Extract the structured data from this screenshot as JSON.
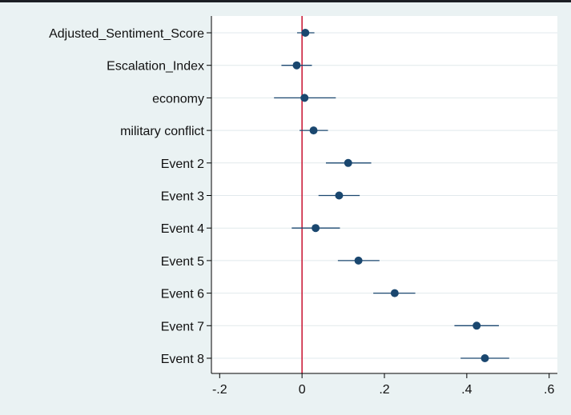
{
  "chart_data": {
    "type": "scatter",
    "subtype": "coefficient-plot",
    "title": "",
    "xlabel": "",
    "ylabel": "",
    "xlim": [
      -0.22,
      0.62
    ],
    "xticks": [
      {
        "value": -0.2,
        "label": "-.2"
      },
      {
        "value": 0,
        "label": "0"
      },
      {
        "value": 0.2,
        "label": ".2"
      },
      {
        "value": 0.4,
        "label": ".4"
      },
      {
        "value": 0.6,
        "label": ".6"
      }
    ],
    "reference_line": {
      "x": 0,
      "color": "#c8102e"
    },
    "grid": true,
    "colors": {
      "background": "#eaf2f3",
      "plot_background": "#ffffff",
      "marker": "#1a476f",
      "ci_line": "#1a476f",
      "gridline": "#e1e9ec"
    },
    "points": [
      {
        "label": "Adjusted_Sentiment_Score",
        "estimate": 0.008,
        "ci_low": -0.012,
        "ci_high": 0.03
      },
      {
        "label": "Escalation_Index",
        "estimate": -0.013,
        "ci_low": -0.05,
        "ci_high": 0.024
      },
      {
        "label": "economy",
        "estimate": 0.006,
        "ci_low": -0.068,
        "ci_high": 0.082
      },
      {
        "label": "military conflict",
        "estimate": 0.028,
        "ci_low": -0.006,
        "ci_high": 0.063
      },
      {
        "label": "Event 2",
        "estimate": 0.112,
        "ci_low": 0.058,
        "ci_high": 0.168
      },
      {
        "label": "Event 3",
        "estimate": 0.09,
        "ci_low": 0.04,
        "ci_high": 0.14
      },
      {
        "label": "Event 4",
        "estimate": 0.033,
        "ci_low": -0.025,
        "ci_high": 0.092
      },
      {
        "label": "Event 5",
        "estimate": 0.137,
        "ci_low": 0.087,
        "ci_high": 0.188
      },
      {
        "label": "Event 6",
        "estimate": 0.225,
        "ci_low": 0.173,
        "ci_high": 0.275
      },
      {
        "label": "Event 7",
        "estimate": 0.424,
        "ci_low": 0.37,
        "ci_high": 0.478
      },
      {
        "label": "Event 8",
        "estimate": 0.444,
        "ci_low": 0.385,
        "ci_high": 0.503
      }
    ]
  }
}
